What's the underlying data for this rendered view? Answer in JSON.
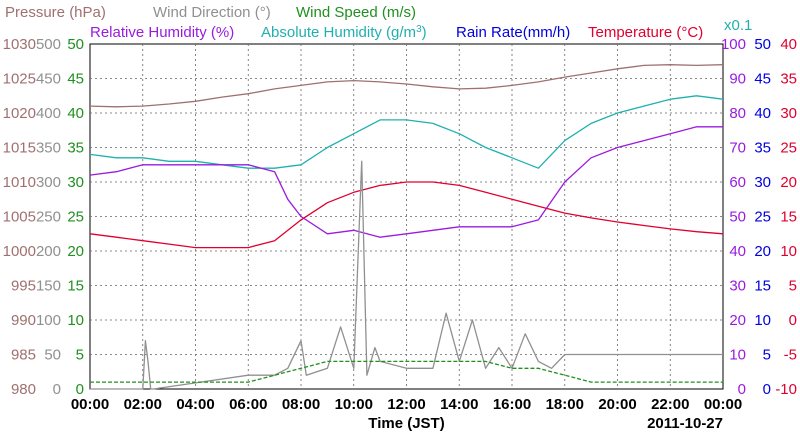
{
  "chart_data": {
    "type": "line",
    "legend_row1": [
      {
        "label": "Pressure (hPa)",
        "color": "#A07070"
      },
      {
        "label": "Wind Direction (°)",
        "color": "#909090"
      },
      {
        "label": "Wind Speed (m/s)",
        "color": "#209020"
      }
    ],
    "legend_row2": [
      {
        "label": "Relative Humidity (%)",
        "color": "#9A1BE0"
      },
      {
        "label": "Absolute Humidity (g/m3)",
        "label_main": "Absolute Humidity (g/m",
        "label_sup": "3",
        "label_end": ")",
        "color": "#20B0B0"
      },
      {
        "label": "Rain Rate(mm/h)",
        "color": "#0000E0"
      },
      {
        "label": "Temperature (°C)",
        "color": "#E00030"
      }
    ],
    "scale_note": "x0.1",
    "xlabel": "Time (JST)",
    "date": "2011-10-27",
    "x_ticks": [
      "00:00",
      "02:00",
      "04:00",
      "06:00",
      "08:00",
      "10:00",
      "12:00",
      "14:00",
      "16:00",
      "18:00",
      "20:00",
      "22:00",
      "00:00"
    ],
    "axes": {
      "pressure": {
        "ticks": [
          "1030",
          "1025",
          "1020",
          "1015",
          "1010",
          "1005",
          "1000",
          "995",
          "990",
          "985",
          "980"
        ],
        "color": "#A07070",
        "ylim": [
          980,
          1030
        ]
      },
      "wind_direction": {
        "ticks": [
          "500",
          "450",
          "400",
          "350",
          "300",
          "250",
          "200",
          "150",
          "100",
          "50",
          "0"
        ],
        "color": "#909090",
        "ylim": [
          0,
          500
        ]
      },
      "wind_speed": {
        "ticks": [
          "50",
          "45",
          "40",
          "35",
          "30",
          "25",
          "20",
          "15",
          "10",
          "5",
          "0"
        ],
        "color": "#209020",
        "ylim": [
          0,
          50
        ]
      },
      "relative_humidity": {
        "ticks": [
          "100",
          "90",
          "80",
          "70",
          "60",
          "50",
          "40",
          "30",
          "20",
          "10",
          "0"
        ],
        "color": "#9A1BE0",
        "ylim": [
          0,
          100
        ]
      },
      "rain_rate": {
        "ticks": [
          "50",
          "45",
          "40",
          "35",
          "30",
          "25",
          "20",
          "15",
          "10",
          "5",
          "0"
        ],
        "color": "#0000E0",
        "ylim": [
          0,
          50
        ]
      },
      "temperature": {
        "ticks": [
          "40",
          "35",
          "30",
          "25",
          "20",
          "15",
          "10",
          "5",
          "0",
          "-5",
          "-10"
        ],
        "color": "#E00030",
        "ylim": [
          -10,
          40
        ]
      }
    },
    "series": [
      {
        "name": "Pressure (hPa)",
        "color": "#A07070",
        "axis": "pressure",
        "x": [
          0,
          1,
          2,
          3,
          4,
          5,
          6,
          7,
          8,
          9,
          10,
          11,
          12,
          13,
          14,
          15,
          16,
          17,
          18,
          19,
          20,
          21,
          22,
          23,
          24
        ],
        "y": [
          1021,
          1020.9,
          1021,
          1021.3,
          1021.7,
          1022.3,
          1022.8,
          1023.5,
          1024,
          1024.5,
          1024.7,
          1024.5,
          1024.2,
          1023.8,
          1023.5,
          1023.6,
          1024,
          1024.5,
          1025.2,
          1025.8,
          1026.4,
          1026.9,
          1027,
          1026.9,
          1027
        ]
      },
      {
        "name": "Absolute Humidity (g/m3)",
        "color": "#20B0B0",
        "axis": "relative_humidity",
        "x": [
          0,
          1,
          2,
          3,
          4,
          5,
          6,
          7,
          8,
          9,
          10,
          11,
          12,
          13,
          14,
          15,
          16,
          17,
          18,
          19,
          20,
          21,
          22,
          23,
          24
        ],
        "y": [
          68,
          67,
          67,
          66,
          66,
          65,
          64,
          64,
          65,
          70,
          74,
          78,
          78,
          77,
          74,
          70,
          67,
          64,
          72,
          77,
          80,
          82,
          84,
          85,
          84
        ]
      },
      {
        "name": "Relative Humidity (%)",
        "color": "#9A1BE0",
        "axis": "relative_humidity",
        "x": [
          0,
          1,
          2,
          3,
          4,
          5,
          6,
          7,
          7.5,
          8,
          9,
          10,
          11,
          12,
          13,
          14,
          15,
          16,
          17,
          18,
          19,
          20,
          21,
          22,
          23,
          24
        ],
        "y": [
          62,
          63,
          65,
          65,
          65,
          65,
          65,
          63,
          55,
          50,
          45,
          46,
          44,
          45,
          46,
          47,
          47,
          47,
          49,
          60,
          67,
          70,
          72,
          74,
          76,
          76
        ]
      },
      {
        "name": "Temperature (°C)",
        "color": "#E00030",
        "axis": "temperature",
        "x": [
          0,
          1,
          2,
          3,
          4,
          5,
          6,
          7,
          8,
          9,
          10,
          11,
          12,
          13,
          14,
          15,
          16,
          17,
          18,
          19,
          20,
          21,
          22,
          23,
          24
        ],
        "y": [
          12.5,
          12.0,
          11.5,
          11.0,
          10.5,
          10.5,
          10.5,
          11.5,
          14.5,
          17.0,
          18.5,
          19.5,
          20.0,
          20.0,
          19.5,
          18.5,
          17.5,
          16.5,
          15.5,
          14.8,
          14.2,
          13.7,
          13.2,
          12.8,
          12.5
        ]
      },
      {
        "name": "Wind Direction (°)",
        "color": "#909090",
        "axis": "wind_direction",
        "x": [
          0,
          2,
          2.1,
          2.2,
          2.3,
          2.4,
          6,
          7,
          7.5,
          8,
          8.2,
          9,
          9.5,
          10,
          10.3,
          10.5,
          10.8,
          11,
          12,
          13,
          13.5,
          14,
          14.5,
          15,
          15.5,
          16,
          16.5,
          17,
          17.5,
          18,
          18,
          20,
          22,
          23.5,
          24
        ],
        "y": [
          0,
          0,
          70,
          40,
          0,
          0,
          20,
          20,
          30,
          70,
          20,
          30,
          90,
          30,
          330,
          20,
          60,
          40,
          30,
          30,
          110,
          40,
          100,
          30,
          60,
          30,
          80,
          40,
          30,
          50,
          50,
          50,
          50,
          50,
          50
        ]
      },
      {
        "name": "Wind Speed (m/s)",
        "color": "#209020",
        "axis": "wind_speed",
        "x": [
          0,
          1,
          2,
          3,
          4,
          5,
          6,
          7,
          8,
          9,
          10,
          11,
          12,
          13,
          14,
          15,
          16,
          17,
          18,
          19,
          20,
          21,
          22,
          23,
          24
        ],
        "y": [
          1,
          1,
          1,
          1,
          1,
          1,
          1,
          2,
          3,
          4,
          4,
          4,
          4,
          4,
          4,
          4,
          3,
          3,
          2,
          1,
          1,
          1,
          1,
          1,
          1
        ]
      }
    ]
  }
}
